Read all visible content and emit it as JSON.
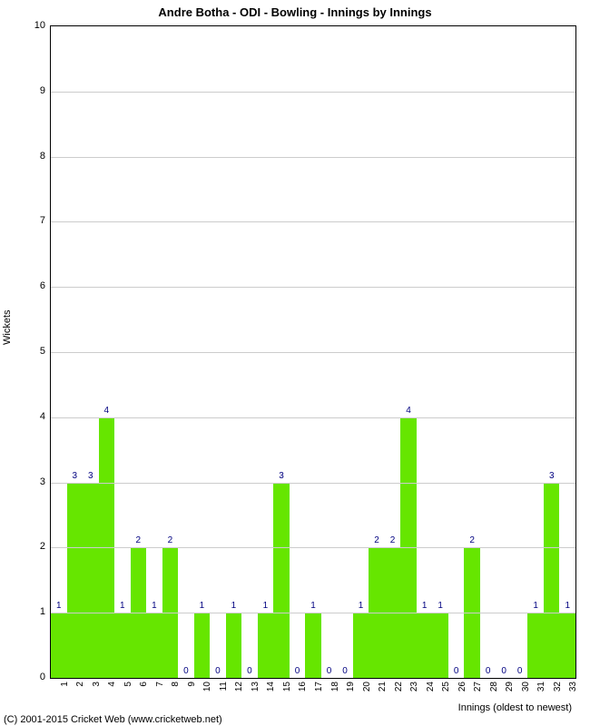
{
  "chart": {
    "type": "bar",
    "title": "Andre Botha - ODI - Bowling - Innings by Innings",
    "title_fontsize": 13,
    "ylabel": "Wickets",
    "xlabel": "Innings (oldest to newest)",
    "copyright": "(C) 2001-2015 Cricket Web (www.cricketweb.net)",
    "background_color": "#ffffff",
    "plot_border_color": "#000000",
    "grid_color": "#cccccc",
    "bar_color": "#66e600",
    "value_label_color": "#000080",
    "axis_font_color": "#000000",
    "label_fontsize": 11,
    "tick_fontsize": 10,
    "value_fontsize": 10,
    "ylim": [
      0,
      10
    ],
    "ytick_step": 1,
    "bar_width_ratio": 1.0,
    "categories": [
      "1",
      "2",
      "3",
      "4",
      "5",
      "6",
      "7",
      "8",
      "9",
      "10",
      "11",
      "12",
      "13",
      "14",
      "15",
      "16",
      "17",
      "18",
      "19",
      "20",
      "21",
      "22",
      "23",
      "24",
      "25",
      "26",
      "27",
      "28",
      "29",
      "30",
      "31",
      "32",
      "33"
    ],
    "values": [
      1,
      3,
      3,
      4,
      1,
      2,
      1,
      2,
      0,
      1,
      0,
      1,
      0,
      1,
      3,
      0,
      1,
      0,
      0,
      1,
      2,
      2,
      4,
      1,
      1,
      0,
      2,
      0,
      0,
      0,
      1,
      3,
      1
    ]
  }
}
